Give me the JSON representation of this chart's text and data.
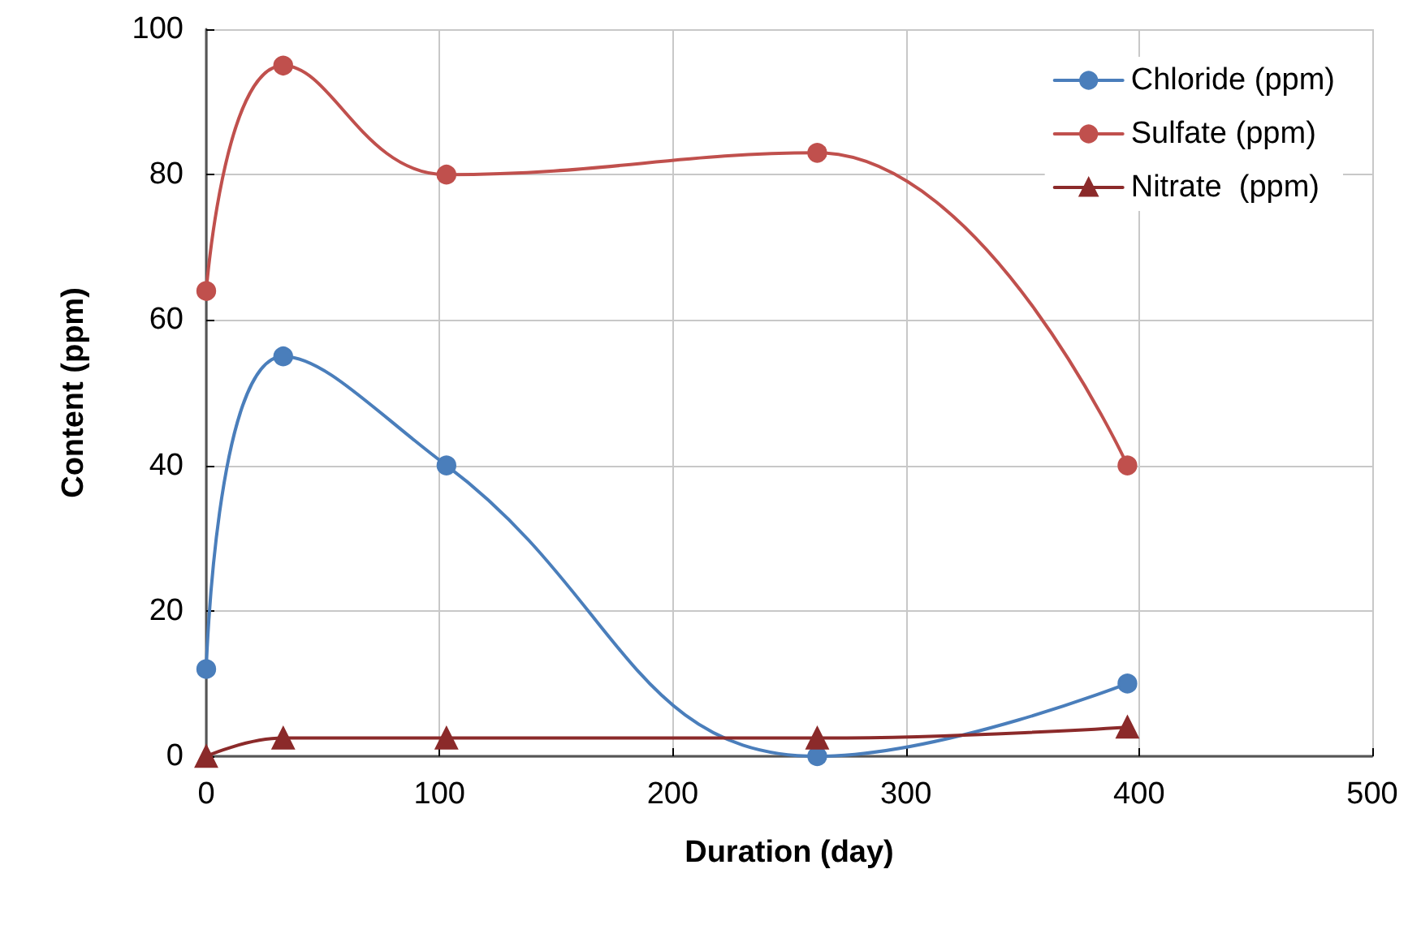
{
  "chart_data": {
    "type": "line",
    "xlabel": "Duration (day)",
    "ylabel": "Content (ppm)",
    "x": [
      0,
      33,
      103,
      262,
      395
    ],
    "series": [
      {
        "name": "Chloride (ppm)",
        "color": "#4a7ebb",
        "marker": "circle",
        "values": [
          12,
          55,
          40,
          0,
          10
        ]
      },
      {
        "name": "Sulfate (ppm)",
        "color": "#c0504d",
        "marker": "circle",
        "values": [
          64,
          95,
          80,
          83,
          40
        ]
      },
      {
        "name": "Nitrate  (ppm)",
        "color": "#8b2a2a",
        "marker": "triangle",
        "values": [
          0,
          2.5,
          2.5,
          2.5,
          4
        ]
      }
    ],
    "xlim": [
      0,
      500
    ],
    "xticks": [
      0,
      100,
      200,
      300,
      400,
      500
    ],
    "ylim": [
      0,
      100
    ],
    "yticks": [
      0,
      20,
      40,
      60,
      80,
      100
    ],
    "grid": true,
    "legend": "top right",
    "line_style": "solid"
  }
}
